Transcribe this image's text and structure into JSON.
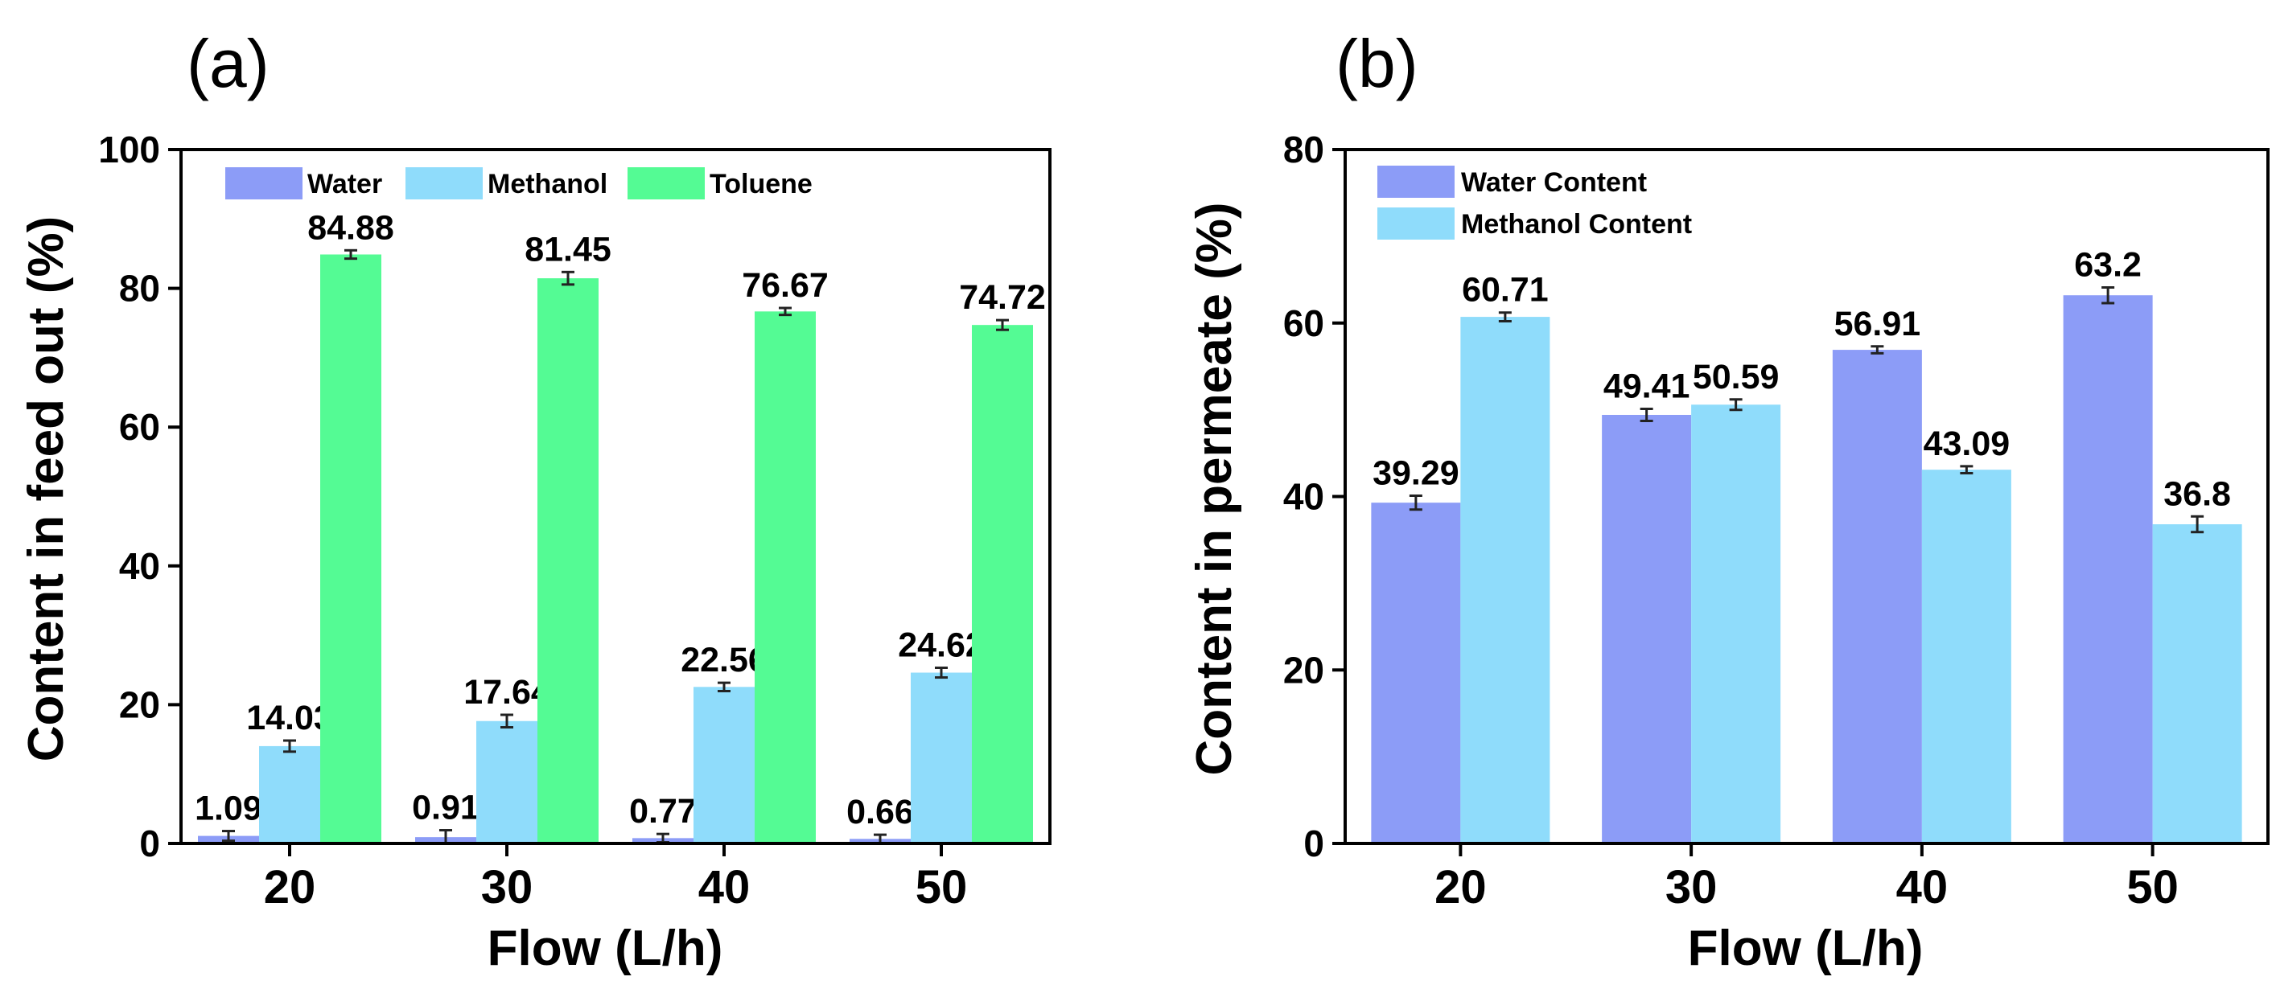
{
  "colors": {
    "water": "#8c9cf7",
    "methanol": "#8fdcfb",
    "toluene": "#54fb94"
  },
  "chart_data": [
    {
      "type": "bar",
      "panel_label": "(a)",
      "title": "",
      "xlabel": "Flow (L/h)",
      "ylabel": "Content in feed out (%)",
      "ylim": [
        0,
        100
      ],
      "yticks": [
        "0",
        "20",
        "40",
        "60",
        "80",
        "100"
      ],
      "categories": [
        "20",
        "30",
        "40",
        "50"
      ],
      "legend_position": "top",
      "series": [
        {
          "name": "Water",
          "color_key": "water",
          "values": [
            1.09,
            0.91,
            0.77,
            0.66
          ],
          "errors": [
            0.7,
            1.0,
            0.6,
            0.6
          ],
          "labels": [
            "1.09",
            "0.91",
            "0.77",
            "0.66"
          ]
        },
        {
          "name": "Methanol",
          "color_key": "methanol",
          "values": [
            14.03,
            17.64,
            22.56,
            24.62
          ],
          "errors": [
            0.8,
            0.9,
            0.6,
            0.7
          ],
          "labels": [
            "14.03",
            "17.64",
            "22.56",
            "24.62"
          ]
        },
        {
          "name": "Toluene",
          "color_key": "toluene",
          "values": [
            84.88,
            81.45,
            76.67,
            74.72
          ],
          "errors": [
            0.6,
            0.9,
            0.5,
            0.7
          ],
          "labels": [
            "84.88",
            "81.45",
            "76.67",
            "74.72"
          ]
        }
      ]
    },
    {
      "type": "bar",
      "panel_label": "(b)",
      "title": "",
      "xlabel": "Flow (L/h)",
      "ylabel": "Content in permeate (%)",
      "ylim": [
        0,
        80
      ],
      "yticks": [
        "0",
        "20",
        "40",
        "60",
        "80"
      ],
      "categories": [
        "20",
        "30",
        "40",
        "50"
      ],
      "legend_position": "top-left",
      "series": [
        {
          "name": "Water Content",
          "color_key": "water",
          "values": [
            39.29,
            49.41,
            56.91,
            63.2
          ],
          "errors": [
            0.8,
            0.7,
            0.4,
            0.9
          ],
          "labels": [
            "39.29",
            "49.41",
            "56.91",
            "63.2"
          ]
        },
        {
          "name": "Methanol Content",
          "color_key": "methanol",
          "values": [
            60.71,
            50.59,
            43.09,
            36.8
          ],
          "errors": [
            0.5,
            0.6,
            0.4,
            0.9
          ],
          "labels": [
            "60.71",
            "50.59",
            "43.09",
            "36.8"
          ]
        }
      ]
    }
  ]
}
